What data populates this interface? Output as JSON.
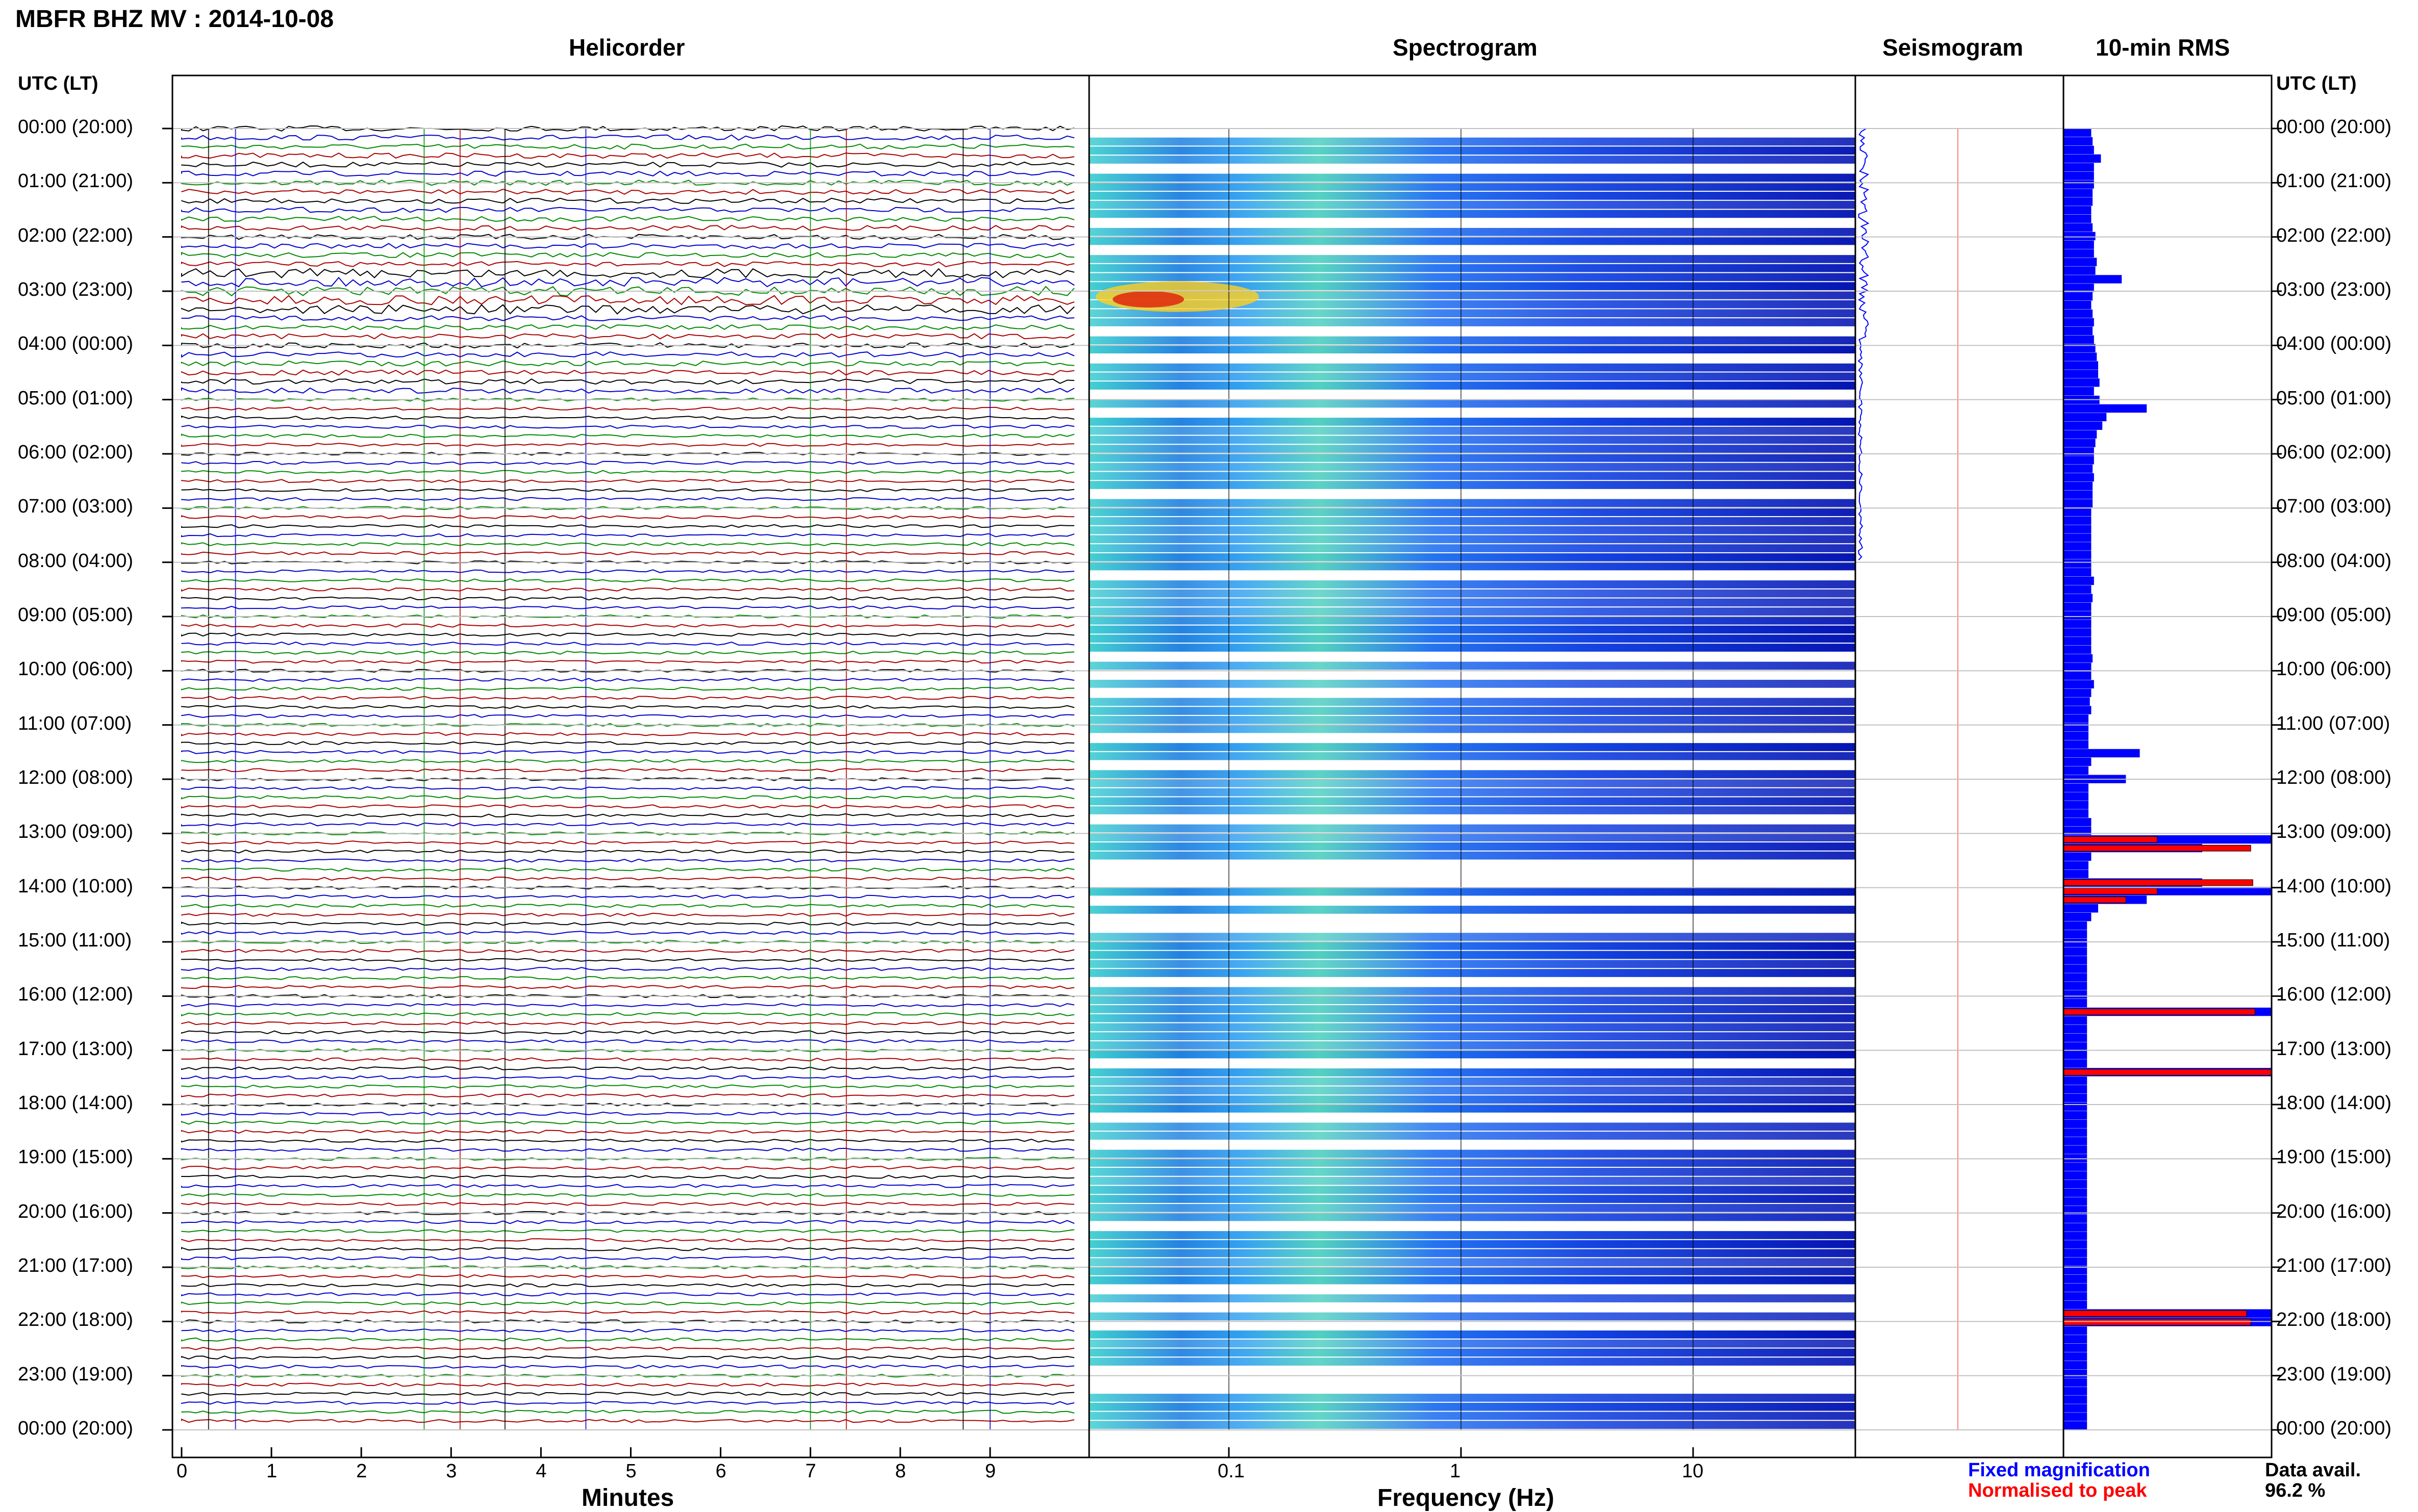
{
  "title": "MBFR BHZ MV : 2014-10-08",
  "panels": {
    "helicorder": "Helicorder",
    "spectrogram": "Spectrogram",
    "seismogram": "Seismogram",
    "rms": "10-min RMS"
  },
  "axis_header_left": "UTC (LT)",
  "axis_header_right": "UTC (LT)",
  "time_labels": [
    "00:00 (20:00)",
    "01:00 (21:00)",
    "02:00 (22:00)",
    "03:00 (23:00)",
    "04:00 (00:00)",
    "05:00 (01:00)",
    "06:00 (02:00)",
    "07:00 (03:00)",
    "08:00 (04:00)",
    "09:00 (05:00)",
    "10:00 (06:00)",
    "11:00 (07:00)",
    "12:00 (08:00)",
    "13:00 (09:00)",
    "14:00 (10:00)",
    "15:00 (11:00)",
    "16:00 (12:00)",
    "17:00 (13:00)",
    "18:00 (14:00)",
    "19:00 (15:00)",
    "20:00 (16:00)",
    "21:00 (17:00)",
    "22:00 (18:00)",
    "23:00 (19:00)",
    "00:00 (20:00)"
  ],
  "helicorder_xlabel": "Minutes",
  "helicorder_ticks": [
    "0",
    "1",
    "2",
    "3",
    "4",
    "5",
    "6",
    "7",
    "8",
    "9"
  ],
  "spectrogram_xlabel": "Frequency (Hz)",
  "spectrogram_ticks": [
    "0.1",
    "1",
    "10"
  ],
  "legend": {
    "fixed": "Fixed magnification",
    "fixed_color": "#0000ff",
    "normalised": "Normalised to peak",
    "normalised_color": "#ff0000"
  },
  "availability": {
    "label": "Data avail.",
    "value": "96.2 %"
  },
  "colors": {
    "trace_black": "#000000",
    "trace_blue": "#0000cc",
    "trace_green": "#008800",
    "trace_red": "#aa0000",
    "rms_fill": "#0000ff",
    "rms_norm": "#ff0000"
  },
  "chart_data": [
    {
      "type": "line",
      "panel": "Helicorder",
      "xlabel": "Minutes",
      "xlim": [
        0,
        10
      ],
      "ylim_hours_utc": [
        0,
        24
      ],
      "lines_per_hour": 6,
      "trace_colors": [
        "#000000",
        "#0000cc",
        "#008800",
        "#aa0000"
      ],
      "events_minutes": [
        0.3,
        0.6,
        2.7,
        3.1,
        3.6,
        4.5,
        7.0,
        7.4,
        8.7,
        9.0
      ]
    },
    {
      "type": "heatmap",
      "panel": "Spectrogram",
      "xlabel": "Frequency (Hz)",
      "xscale": "log",
      "xlim": [
        0.025,
        50
      ],
      "xticks": [
        0.1,
        1,
        10
      ],
      "ylim_hours_utc": [
        0,
        24
      ]
    },
    {
      "type": "bar",
      "panel": "10-min RMS",
      "orientation": "horizontal",
      "series": [
        {
          "name": "Fixed magnification",
          "values": [
            20,
            21,
            22,
            27,
            22,
            22,
            22,
            21,
            21,
            20,
            20,
            21,
            23,
            22,
            22,
            24,
            23,
            42,
            22,
            21,
            20,
            21,
            22,
            21,
            22,
            23,
            24,
            25,
            25,
            26,
            22,
            26,
            60,
            31,
            28,
            24,
            23,
            22,
            22,
            21,
            22,
            21,
            21,
            21,
            20,
            20,
            20,
            20,
            20,
            20,
            20,
            20,
            22,
            20,
            21,
            20,
            20,
            20,
            20,
            20,
            20,
            21,
            20,
            20,
            22,
            20,
            19,
            20,
            18,
            18,
            18,
            18,
            55,
            20,
            18,
            45,
            18,
            18,
            18,
            18,
            20,
            20,
            150,
            100,
            20,
            18,
            18,
            100,
            150,
            60,
            25,
            20,
            17,
            17,
            17,
            17,
            17,
            17,
            17,
            17,
            17,
            17,
            150,
            17,
            17,
            17,
            17,
            17,
            17,
            150,
            17,
            17,
            17,
            17,
            17,
            17,
            17,
            17,
            17,
            17,
            17,
            17,
            17,
            17,
            17,
            17,
            17,
            17,
            17,
            17,
            17,
            17,
            17,
            17,
            17,
            17,
            17,
            150,
            150,
            17,
            17,
            17,
            17,
            17,
            17,
            17,
            17,
            17,
            17,
            17,
            17
          ]
        },
        {
          "name": "Normalised to peak",
          "values": [
            0,
            0,
            0,
            0,
            0,
            0,
            0,
            0,
            0,
            0,
            0,
            0,
            0,
            0,
            0,
            0,
            0,
            0,
            0,
            0,
            0,
            0,
            0,
            0,
            0,
            0,
            0,
            0,
            0,
            0,
            0,
            0,
            0,
            0,
            0,
            0,
            0,
            0,
            0,
            0,
            0,
            0,
            0,
            0,
            0,
            0,
            0,
            0,
            0,
            0,
            0,
            0,
            0,
            0,
            0,
            0,
            0,
            0,
            0,
            0,
            0,
            0,
            0,
            0,
            0,
            0,
            0,
            0,
            0,
            0,
            0,
            0,
            0,
            0,
            0,
            0,
            0,
            0,
            0,
            0,
            0,
            0,
            45,
            90,
            0,
            0,
            0,
            91,
            45,
            30,
            0,
            0,
            0,
            0,
            0,
            0,
            0,
            0,
            0,
            0,
            0,
            0,
            92,
            0,
            0,
            0,
            0,
            0,
            0,
            100,
            0,
            0,
            0,
            0,
            0,
            0,
            0,
            0,
            0,
            0,
            0,
            0,
            0,
            0,
            0,
            0,
            0,
            0,
            0,
            0,
            0,
            0,
            0,
            0,
            0,
            0,
            0,
            88,
            90,
            0,
            0,
            0,
            0,
            0,
            0,
            0,
            0,
            0,
            0,
            0,
            0
          ]
        }
      ]
    }
  ]
}
